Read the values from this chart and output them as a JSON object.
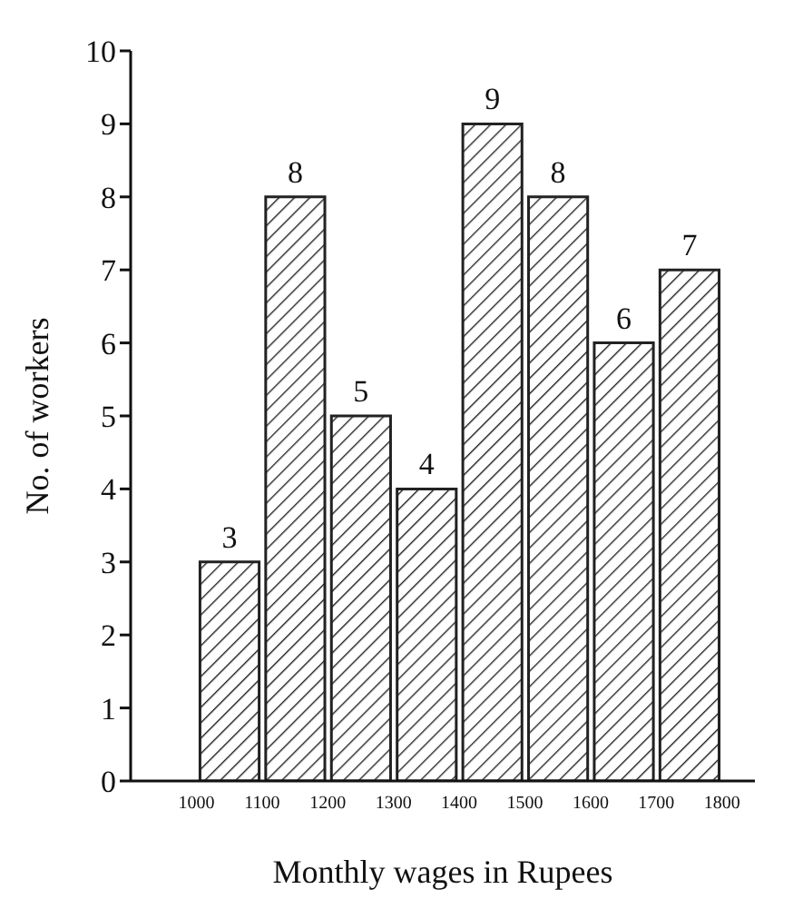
{
  "chart_data": {
    "type": "histogram",
    "xlabel": "Monthly wages in Rupees",
    "ylabel": "No. of workers",
    "bins": [
      1000,
      1100,
      1200,
      1300,
      1400,
      1500,
      1600,
      1700,
      1800
    ],
    "values": [
      3,
      8,
      5,
      4,
      9,
      8,
      6,
      7
    ],
    "color": "#222222",
    "xlim": [
      900,
      1850
    ],
    "xticks": [
      1000,
      1100,
      1200,
      1300,
      1400,
      1500,
      1600,
      1700,
      1800
    ],
    "ylim": [
      0,
      10
    ],
    "yticks": [
      0,
      1,
      2,
      3,
      4,
      5,
      6,
      7,
      8,
      9,
      10
    ],
    "data_labels": true,
    "grid": false
  }
}
